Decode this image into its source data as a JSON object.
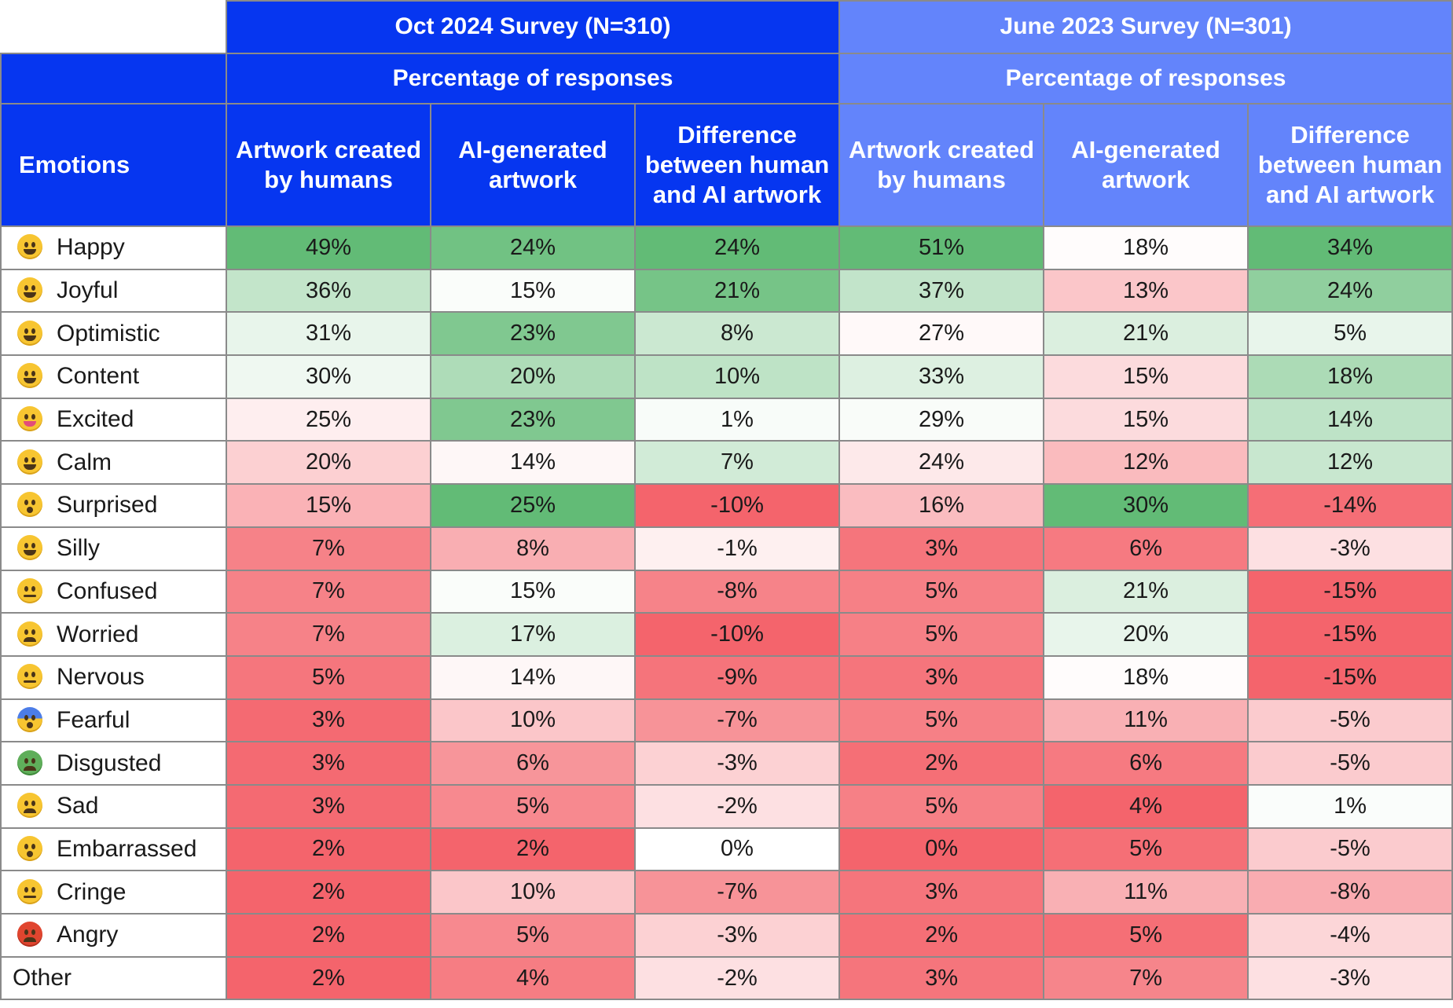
{
  "surveys": [
    {
      "title": "Oct 2024 Survey (N=310)",
      "subtitle": "Percentage of responses"
    },
    {
      "title": "June 2023 Survey (N=301)",
      "subtitle": "Percentage of responses"
    }
  ],
  "columns": {
    "emotions": "Emotions",
    "human": "Artwork created by humans",
    "ai": "AI-generated artwork",
    "diff": "Difference between human and AI artwork"
  },
  "colors": {
    "oct_header": "#0636f0",
    "jun_header": "#6384fb",
    "positive_max": "#62bb76",
    "neutral": "#ffffff",
    "negative_max": "#f4646c"
  },
  "chart_data": {
    "type": "table",
    "column_headers": [
      "Emotions",
      "Artwork created by humans",
      "AI-generated artwork",
      "Difference between human and AI artwork",
      "Artwork created by humans",
      "AI-generated artwork",
      "Difference between human and AI artwork"
    ],
    "rows": [
      {
        "emotion": "Happy",
        "icon": "grinning-face-icon",
        "oct_human": "49%",
        "oct_ai": "24%",
        "oct_diff": "24%",
        "jun_human": "51%",
        "jun_ai": "18%",
        "jun_diff": "34%"
      },
      {
        "emotion": "Joyful",
        "icon": "laughing-face-icon",
        "oct_human": "36%",
        "oct_ai": "15%",
        "oct_diff": "21%",
        "jun_human": "37%",
        "jun_ai": "13%",
        "jun_diff": "24%"
      },
      {
        "emotion": "Optimistic",
        "icon": "hugging-face-icon",
        "oct_human": "31%",
        "oct_ai": "23%",
        "oct_diff": "8%",
        "jun_human": "27%",
        "jun_ai": "21%",
        "jun_diff": "5%"
      },
      {
        "emotion": "Content",
        "icon": "smiling-face-icon",
        "oct_human": "30%",
        "oct_ai": "20%",
        "oct_diff": "10%",
        "jun_human": "33%",
        "jun_ai": "15%",
        "jun_diff": "18%"
      },
      {
        "emotion": "Excited",
        "icon": "party-face-icon",
        "oct_human": "25%",
        "oct_ai": "23%",
        "oct_diff": "1%",
        "jun_human": "29%",
        "jun_ai": "15%",
        "jun_diff": "14%"
      },
      {
        "emotion": "Calm",
        "icon": "halo-face-icon",
        "oct_human": "20%",
        "oct_ai": "14%",
        "oct_diff": "7%",
        "jun_human": "24%",
        "jun_ai": "12%",
        "jun_diff": "12%"
      },
      {
        "emotion": "Surprised",
        "icon": "astonished-face-icon",
        "oct_human": "15%",
        "oct_ai": "25%",
        "oct_diff": "-10%",
        "jun_human": "16%",
        "jun_ai": "30%",
        "jun_diff": "-14%"
      },
      {
        "emotion": "Silly",
        "icon": "zany-face-icon",
        "oct_human": "7%",
        "oct_ai": "8%",
        "oct_diff": "-1%",
        "jun_human": "3%",
        "jun_ai": "6%",
        "jun_diff": "-3%"
      },
      {
        "emotion": "Confused",
        "icon": "dizzy-face-icon",
        "oct_human": "7%",
        "oct_ai": "15%",
        "oct_diff": "-8%",
        "jun_human": "5%",
        "jun_ai": "21%",
        "jun_diff": "-15%"
      },
      {
        "emotion": "Worried",
        "icon": "worried-face-icon",
        "oct_human": "7%",
        "oct_ai": "17%",
        "oct_diff": "-10%",
        "jun_human": "5%",
        "jun_ai": "20%",
        "jun_diff": "-15%"
      },
      {
        "emotion": "Nervous",
        "icon": "confounded-face-icon",
        "oct_human": "5%",
        "oct_ai": "14%",
        "oct_diff": "-9%",
        "jun_human": "3%",
        "jun_ai": "18%",
        "jun_diff": "-15%"
      },
      {
        "emotion": "Fearful",
        "icon": "fearful-face-icon",
        "oct_human": "3%",
        "oct_ai": "10%",
        "oct_diff": "-7%",
        "jun_human": "5%",
        "jun_ai": "11%",
        "jun_diff": "-5%"
      },
      {
        "emotion": "Disgusted",
        "icon": "nauseated-face-icon",
        "oct_human": "3%",
        "oct_ai": "6%",
        "oct_diff": "-3%",
        "jun_human": "2%",
        "jun_ai": "6%",
        "jun_diff": "-5%"
      },
      {
        "emotion": "Sad",
        "icon": "sad-face-icon",
        "oct_human": "3%",
        "oct_ai": "5%",
        "oct_diff": "-2%",
        "jun_human": "5%",
        "jun_ai": "4%",
        "jun_diff": "1%"
      },
      {
        "emotion": "Embarrassed",
        "icon": "flushed-face-icon",
        "oct_human": "2%",
        "oct_ai": "2%",
        "oct_diff": "0%",
        "jun_human": "0%",
        "jun_ai": "5%",
        "jun_diff": "-5%"
      },
      {
        "emotion": "Cringe",
        "icon": "grimacing-face-icon",
        "oct_human": "2%",
        "oct_ai": "10%",
        "oct_diff": "-7%",
        "jun_human": "3%",
        "jun_ai": "11%",
        "jun_diff": "-8%"
      },
      {
        "emotion": "Angry",
        "icon": "angry-face-icon",
        "oct_human": "2%",
        "oct_ai": "5%",
        "oct_diff": "-3%",
        "jun_human": "2%",
        "jun_ai": "5%",
        "jun_diff": "-4%"
      },
      {
        "emotion": "Other",
        "icon": "",
        "oct_human": "2%",
        "oct_ai": "4%",
        "oct_diff": "-2%",
        "jun_human": "3%",
        "jun_ai": "7%",
        "jun_diff": "-3%"
      }
    ]
  }
}
